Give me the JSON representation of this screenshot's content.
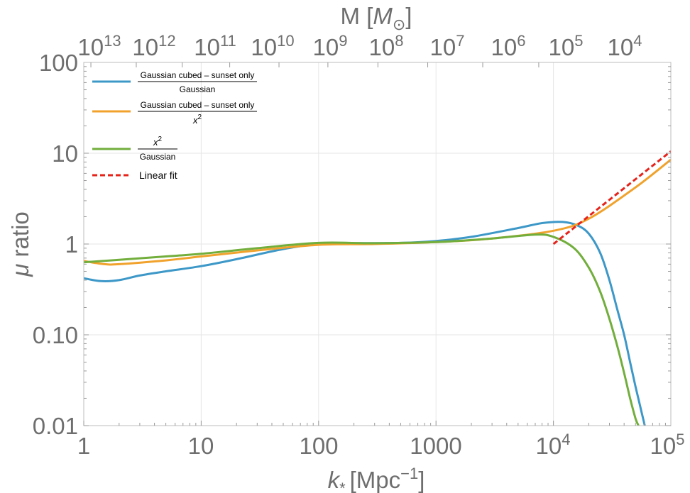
{
  "chart_data": {
    "type": "line",
    "xscale": "log",
    "yscale": "log",
    "xlim": [
      1,
      100000
    ],
    "ylim": [
      0.01,
      100
    ],
    "xlabel": {
      "main": "k",
      "sub": "*",
      "unit": "[Mpc",
      "exp": "−1",
      "close": "]"
    },
    "ylabel": {
      "symbol": "μ",
      "text": " ratio"
    },
    "top_axis_label": {
      "main": "M [",
      "symbol": "M",
      "sub": "⊙",
      "close": "]"
    },
    "x_ticks": [
      {
        "value": 1,
        "label": "1"
      },
      {
        "value": 10,
        "label": "10"
      },
      {
        "value": 100,
        "label": "100"
      },
      {
        "value": 1000,
        "label": "1000"
      },
      {
        "value": 10000,
        "base": "10",
        "exp": "4"
      },
      {
        "value": 100000,
        "base": "10",
        "exp": "5"
      }
    ],
    "y_ticks": [
      {
        "value": 0.01,
        "label": "0.01"
      },
      {
        "value": 0.1,
        "label": "0.10"
      },
      {
        "value": 1,
        "label": "1"
      },
      {
        "value": 10,
        "label": "10"
      },
      {
        "value": 100,
        "label": "100"
      }
    ],
    "top_ticks": [
      {
        "k": 1.15,
        "base": "10",
        "exp": "13"
      },
      {
        "k": 2.8,
        "base": "10",
        "exp": "12"
      },
      {
        "k": 6.9,
        "base": "10",
        "exp": "11"
      },
      {
        "k": 17.5,
        "base": "10",
        "exp": "10"
      },
      {
        "k": 46,
        "base": "10",
        "exp": "9"
      },
      {
        "k": 120,
        "base": "10",
        "exp": "8"
      },
      {
        "k": 320,
        "base": "10",
        "exp": "7"
      },
      {
        "k": 850,
        "base": "10",
        "exp": "6"
      },
      {
        "k": 2500,
        "base": "10",
        "exp": "5"
      },
      {
        "k": 7500,
        "base": "10",
        "exp": "4"
      }
    ],
    "series": [
      {
        "name": "Gaussian cubed – sunset only / Gaussian",
        "legend_numerator": "Gaussian cubed – sunset only",
        "legend_denominator": "Gaussian",
        "color": "#3d98c8",
        "dash": "",
        "points": [
          [
            1,
            0.42
          ],
          [
            1.4,
            0.39
          ],
          [
            2,
            0.4
          ],
          [
            3,
            0.45
          ],
          [
            5,
            0.5
          ],
          [
            10,
            0.57
          ],
          [
            20,
            0.68
          ],
          [
            50,
            0.88
          ],
          [
            100,
            1.0
          ],
          [
            200,
            1.02
          ],
          [
            500,
            1.03
          ],
          [
            1000,
            1.08
          ],
          [
            2000,
            1.2
          ],
          [
            5000,
            1.5
          ],
          [
            8000,
            1.7
          ],
          [
            12000,
            1.75
          ],
          [
            16000,
            1.6
          ],
          [
            20000,
            1.3
          ],
          [
            25000,
            0.8
          ],
          [
            30000,
            0.4
          ],
          [
            35000,
            0.19
          ],
          [
            40000,
            0.1
          ],
          [
            45000,
            0.05
          ],
          [
            50000,
            0.027
          ],
          [
            55000,
            0.016
          ],
          [
            60000,
            0.01
          ]
        ]
      },
      {
        "name": "Gaussian cubed – sunset only / x²",
        "legend_numerator": "Gaussian cubed – sunset only",
        "legend_denominator": "x",
        "legend_denominator_exp": "2",
        "color": "#f0a22c",
        "dash": "",
        "points": [
          [
            1,
            0.65
          ],
          [
            1.5,
            0.6
          ],
          [
            2,
            0.6
          ],
          [
            5,
            0.66
          ],
          [
            10,
            0.73
          ],
          [
            30,
            0.85
          ],
          [
            100,
            0.98
          ],
          [
            300,
            1.0
          ],
          [
            1000,
            1.05
          ],
          [
            3000,
            1.15
          ],
          [
            10000,
            1.4
          ],
          [
            20000,
            1.9
          ],
          [
            50000,
            4.2
          ],
          [
            100000,
            8.5
          ]
        ]
      },
      {
        "name": "x² / Gaussian",
        "legend_numerator": "x",
        "legend_numerator_exp": "2",
        "legend_denominator": "Gaussian",
        "color": "#72ae3c",
        "dash": "",
        "points": [
          [
            1,
            0.63
          ],
          [
            2,
            0.67
          ],
          [
            5,
            0.73
          ],
          [
            10,
            0.78
          ],
          [
            30,
            0.9
          ],
          [
            100,
            1.03
          ],
          [
            300,
            1.02
          ],
          [
            1000,
            1.05
          ],
          [
            3000,
            1.15
          ],
          [
            7000,
            1.27
          ],
          [
            10000,
            1.2
          ],
          [
            15000,
            0.9
          ],
          [
            20000,
            0.55
          ],
          [
            25000,
            0.3
          ],
          [
            30000,
            0.15
          ],
          [
            35000,
            0.075
          ],
          [
            40000,
            0.038
          ],
          [
            45000,
            0.02
          ],
          [
            50000,
            0.012
          ],
          [
            53000,
            0.01
          ]
        ]
      },
      {
        "name": "Linear fit",
        "legend_label": "Linear fit",
        "color": "#e5231b",
        "dash": "7,4",
        "points": [
          [
            10000,
            1.0
          ],
          [
            100000,
            10.5
          ]
        ]
      }
    ]
  }
}
